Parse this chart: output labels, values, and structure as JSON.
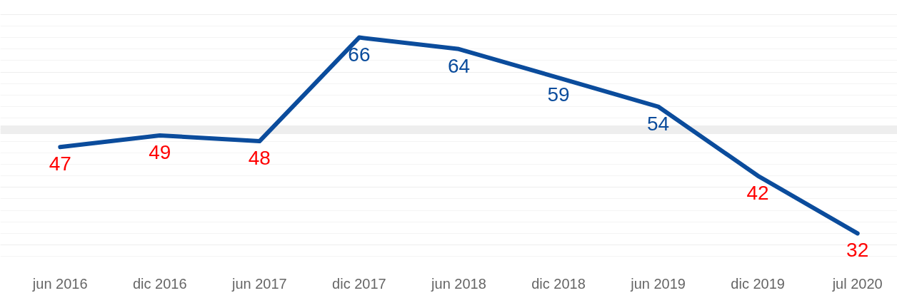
{
  "chart_data": {
    "type": "line",
    "categories": [
      "jun 2016",
      "dic 2016",
      "jun 2017",
      "dic 2017",
      "jun 2018",
      "dic 2018",
      "jun 2019",
      "dic 2019",
      "jul 2020"
    ],
    "series": [
      {
        "color": "#0b4c9c",
        "values": [
          47,
          49,
          48,
          66,
          64,
          59,
          54,
          42,
          32
        ]
      }
    ],
    "colors": [
      "#ff0000",
      "#ff0000",
      "#ff0000",
      "#0b4c9c",
      "#0b4c9c",
      "#0b4c9c",
      "#0b4c9c",
      "#ff0000",
      "#ff0000"
    ],
    "data_labels": true,
    "tick_labels": "x",
    "grid": "y",
    "ref_lines": [
      {
        "axis": "y",
        "value": 50,
        "color": "#eeeeee"
      }
    ],
    "line_style": "solid",
    "marker": "none"
  }
}
